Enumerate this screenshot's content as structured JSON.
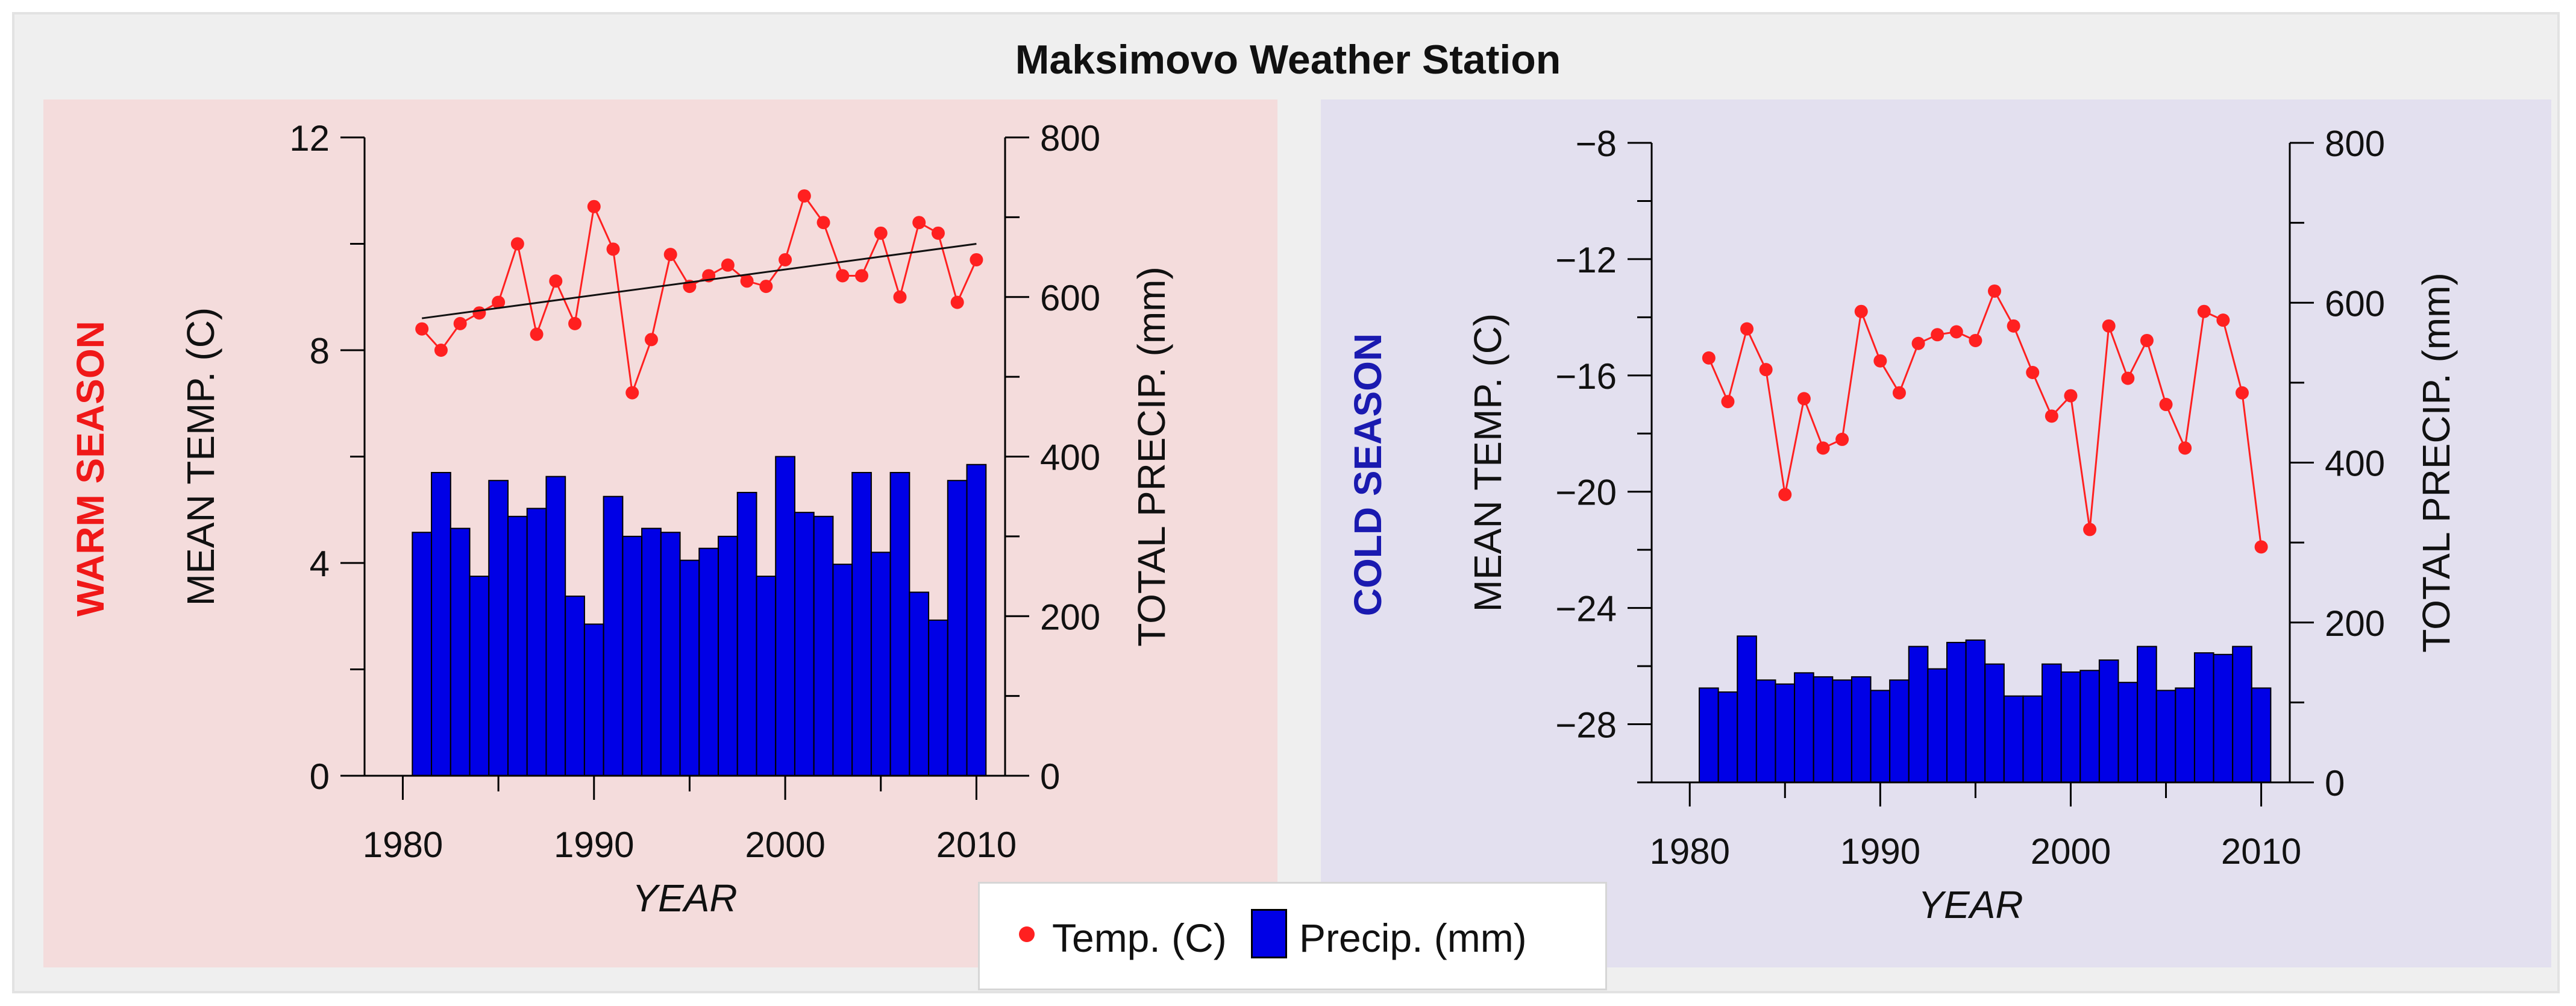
{
  "title": "Maksimovo Weather Station",
  "colors": {
    "warm_panel_bg": "#f4dcdc",
    "cold_panel_bg": "#e3e0ef",
    "warm_label": "#f01818",
    "cold_label": "#1a1ab0",
    "temp_line": "#ff2020",
    "precip_bar": "#0000e6",
    "trend_line": "#111111"
  },
  "legend": {
    "temp_label": "Temp. (C)",
    "precip_label": "Precip. (mm)"
  },
  "chart_data": [
    {
      "type": "bar",
      "panel_label": "WARM SEASON",
      "xlabel": "YEAR",
      "ylabel_left": "MEAN TEMP. (C)",
      "ylabel_right": "TOTAL PRECIP. (mm)",
      "xlim": [
        1978,
        2011.5
      ],
      "ylim_left": [
        0,
        12
      ],
      "ylim_right": [
        0,
        800
      ],
      "xticks": [
        1980,
        1990,
        2000,
        2010
      ],
      "yticks_left": [
        0,
        4,
        8,
        12
      ],
      "yticks_right": [
        0,
        200,
        400,
        600,
        800
      ],
      "years": [
        1981,
        1982,
        1983,
        1984,
        1985,
        1986,
        1987,
        1988,
        1989,
        1990,
        1991,
        1992,
        1993,
        1994,
        1995,
        1996,
        1997,
        1998,
        1999,
        2000,
        2001,
        2002,
        2003,
        2004,
        2005,
        2006,
        2007,
        2008,
        2009,
        2010
      ],
      "series": [
        {
          "name": "Temp. (C)",
          "axis": "left",
          "kind": "line",
          "values": [
            8.4,
            8.0,
            8.5,
            8.7,
            8.9,
            10.0,
            8.3,
            9.3,
            8.5,
            10.7,
            9.9,
            7.2,
            8.2,
            9.8,
            9.2,
            9.4,
            9.6,
            9.3,
            9.2,
            9.7,
            10.9,
            10.4,
            9.4,
            9.4,
            10.2,
            9.0,
            10.4,
            10.2,
            8.9,
            9.7
          ]
        },
        {
          "name": "Precip. (mm)",
          "axis": "right",
          "kind": "bar",
          "values": [
            305,
            380,
            310,
            250,
            370,
            325,
            335,
            375,
            225,
            190,
            350,
            300,
            310,
            305,
            270,
            285,
            300,
            355,
            250,
            400,
            330,
            325,
            265,
            380,
            280,
            380,
            230,
            195,
            370,
            390
          ]
        },
        {
          "name": "trend",
          "axis": "left",
          "kind": "trendline",
          "x": [
            1981,
            2010
          ],
          "y": [
            8.6,
            10.0
          ]
        }
      ]
    },
    {
      "type": "bar",
      "panel_label": "COLD SEASON",
      "xlabel": "YEAR",
      "ylabel_left": "MEAN TEMP. (C)",
      "ylabel_right": "TOTAL PRECIP. (mm)",
      "xlim": [
        1978,
        2011.5
      ],
      "ylim_left": [
        -30,
        -8
      ],
      "ylim_right": [
        0,
        800
      ],
      "xticks": [
        1980,
        1990,
        2000,
        2010
      ],
      "yticks_left": [
        -28,
        -24,
        -20,
        -16,
        -12,
        -8
      ],
      "yticks_right": [
        0,
        200,
        400,
        600,
        800
      ],
      "years": [
        1981,
        1982,
        1983,
        1984,
        1985,
        1986,
        1987,
        1988,
        1989,
        1990,
        1991,
        1992,
        1993,
        1994,
        1995,
        1996,
        1997,
        1998,
        1999,
        2000,
        2001,
        2002,
        2003,
        2004,
        2005,
        2006,
        2007,
        2008,
        2009,
        2010
      ],
      "series": [
        {
          "name": "Temp. (C)",
          "axis": "left",
          "kind": "line",
          "values": [
            -15.4,
            -16.9,
            -14.4,
            -15.8,
            -20.1,
            -16.8,
            -18.5,
            -18.2,
            -13.8,
            -15.5,
            -16.6,
            -14.9,
            -14.6,
            -14.5,
            -14.8,
            -13.1,
            -14.3,
            -15.9,
            -17.4,
            -16.7,
            -21.3,
            -14.3,
            -16.1,
            -14.8,
            -17.0,
            -18.5,
            -13.8,
            -14.1,
            -16.6,
            -21.9
          ]
        },
        {
          "name": "Precip. (mm)",
          "axis": "right",
          "kind": "bar",
          "values": [
            118,
            113,
            183,
            128,
            123,
            137,
            132,
            128,
            132,
            115,
            128,
            170,
            142,
            175,
            178,
            148,
            108,
            108,
            148,
            138,
            140,
            153,
            125,
            170,
            115,
            118,
            162,
            160,
            170,
            118
          ]
        }
      ]
    }
  ]
}
